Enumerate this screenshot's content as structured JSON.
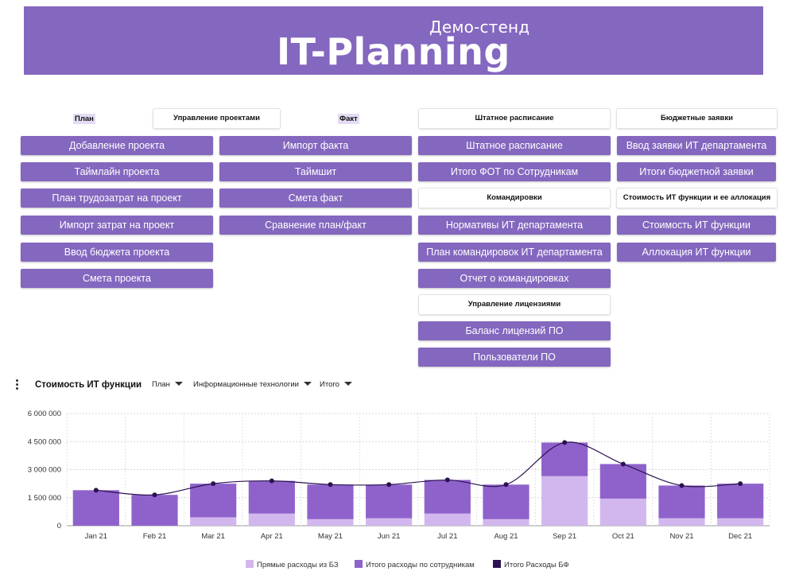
{
  "header": {
    "subtitle": "Демо-стенд",
    "title": "IT-Planning"
  },
  "sections": {
    "plan_label": "План",
    "project_mgmt": "Управление проектами",
    "fact_label": "Факт",
    "staffing_header": "Штатное расписание",
    "budget_requests_header": "Бюджетные заявки",
    "business_trips_header": "Командировки",
    "it_cost_header": "Стоимость ИТ функции и ее аллокация",
    "licenses_header": "Управление лицензиями"
  },
  "buttons": {
    "col1": [
      "Добавление проекта",
      "Таймлайн проекта",
      "План трудозатрат на проект",
      "Импорт затрат на проект",
      "Ввод бюджета проекта",
      "Смета проекта"
    ],
    "col2": [
      "Импорт факта",
      "Таймшит",
      "Смета факт",
      "Сравнение план/факт"
    ],
    "col3a": [
      "Штатное расписание",
      "Итого ФОТ по Сотрудникам"
    ],
    "col3b": [
      "Нормативы ИТ департамента",
      "План командировок ИТ департамента",
      "Отчет о командировках"
    ],
    "col3c": [
      "Баланс лицензий ПО",
      "Пользователи ПО"
    ],
    "col4a": [
      "Ввод заявки ИТ департамента",
      "Итоги бюджетной заявки"
    ],
    "col4b": [
      "Стоимость ИТ функции",
      "Аллокация ИТ функции"
    ]
  },
  "chart_controls": {
    "title": "Стоимость ИТ функции",
    "filters": [
      "План",
      "Информационные технологии",
      "Итого"
    ]
  },
  "colors": {
    "accent": "#8467bf",
    "light": "#d2b7ee",
    "mid": "#8f62cb",
    "line": "#2b1250"
  },
  "chart_data": {
    "type": "bar",
    "stacked": true,
    "categories": [
      "Jan 21",
      "Feb 21",
      "Mar 21",
      "Apr 21",
      "May 21",
      "Jun 21",
      "Jul 21",
      "Aug 21",
      "Sep 21",
      "Oct 21",
      "Nov 21",
      "Dec 21"
    ],
    "series": [
      {
        "name": "Прямые расходы из БЗ",
        "values": [
          0,
          0,
          450000,
          650000,
          350000,
          400000,
          650000,
          350000,
          2650000,
          1450000,
          400000,
          400000
        ]
      },
      {
        "name": "Итого расходы по сотрудникам",
        "values": [
          1900000,
          1650000,
          1800000,
          1750000,
          1850000,
          1800000,
          1800000,
          1850000,
          1800000,
          1850000,
          1750000,
          1850000
        ]
      },
      {
        "name": "Итого Расходы БФ",
        "type": "line",
        "values": [
          1900000,
          1650000,
          2250000,
          2400000,
          2200000,
          2200000,
          2450000,
          2200000,
          4450000,
          3300000,
          2150000,
          2250000
        ]
      }
    ],
    "yticks": [
      "0",
      "1 500 000",
      "3 000 000",
      "4 500 000",
      "6 000 000"
    ],
    "ylim": [
      0,
      6000000
    ],
    "grid": true,
    "legend": "bottom"
  }
}
